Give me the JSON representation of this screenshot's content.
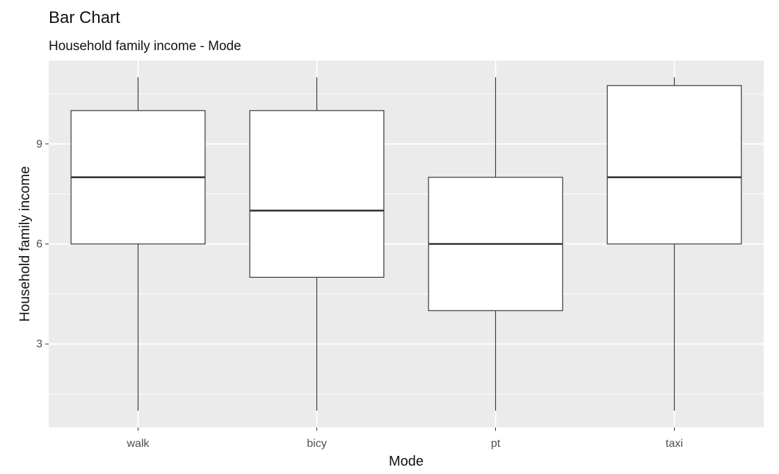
{
  "chart_data": {
    "type": "boxplot",
    "title": "Bar Chart",
    "subtitle": "Household family income - Mode",
    "xlabel": "Mode",
    "ylabel": "Household family income",
    "categories": [
      "walk",
      "bicy",
      "pt",
      "taxi"
    ],
    "boxes": [
      {
        "category": "walk",
        "min": 1,
        "q1": 6,
        "median": 8,
        "q3": 10,
        "max": 11
      },
      {
        "category": "bicy",
        "min": 1,
        "q1": 5,
        "median": 7,
        "q3": 10,
        "max": 11
      },
      {
        "category": "pt",
        "min": 1,
        "q1": 4,
        "median": 6,
        "q3": 8,
        "max": 11
      },
      {
        "category": "taxi",
        "min": 1,
        "q1": 6,
        "median": 8,
        "q3": 10.75,
        "max": 11
      }
    ],
    "ylim": [
      0.5,
      11.5
    ],
    "yticks": [
      3,
      6,
      9
    ],
    "ytick_labels": [
      "3",
      "6",
      "9"
    ],
    "grid": true,
    "colors": {
      "panel": "#ebebeb",
      "grid": "#ffffff",
      "box_fill": "#ffffff",
      "box_stroke": "#333333",
      "tick_text": "#4d4d4d"
    }
  }
}
